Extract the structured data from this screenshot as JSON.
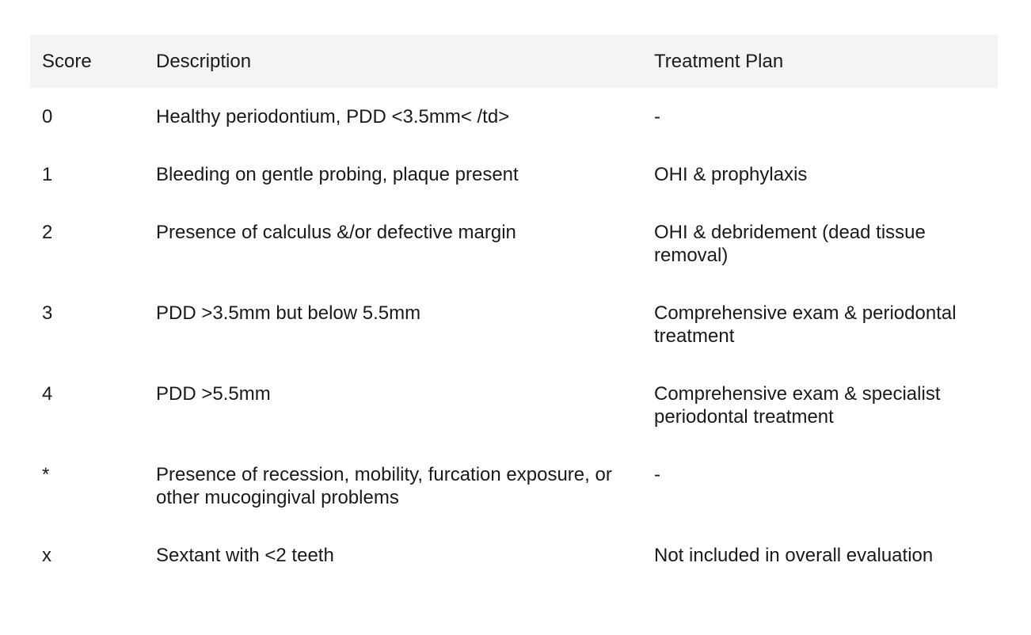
{
  "table": {
    "headers": {
      "score": "Score",
      "description": "Description",
      "treatment": "Treatment Plan"
    },
    "rows": [
      {
        "score": "0",
        "description": "Healthy periodontium, PDD <3.5mm< /td>",
        "treatment": "-"
      },
      {
        "score": "1",
        "description": "Bleeding on gentle probing, plaque present",
        "treatment": "OHI & prophylaxis"
      },
      {
        "score": "2",
        "description": "Presence of calculus &/or defective margin",
        "treatment": "OHI & debridement (dead tissue removal)"
      },
      {
        "score": "3",
        "description": "PDD >3.5mm but below 5.5mm",
        "treatment": "Comprehensive exam & periodontal treatment"
      },
      {
        "score": "4",
        "description": "PDD >5.5mm",
        "treatment": "Comprehensive exam & specialist periodontal treatment"
      },
      {
        "score": "*",
        "description": "Presence of recession, mobility, furcation exposure, or other mucogingival problems",
        "treatment": "-"
      },
      {
        "score": "x",
        "description": "Sextant with <2 teeth",
        "treatment": "Not included in overall evaluation"
      }
    ]
  }
}
